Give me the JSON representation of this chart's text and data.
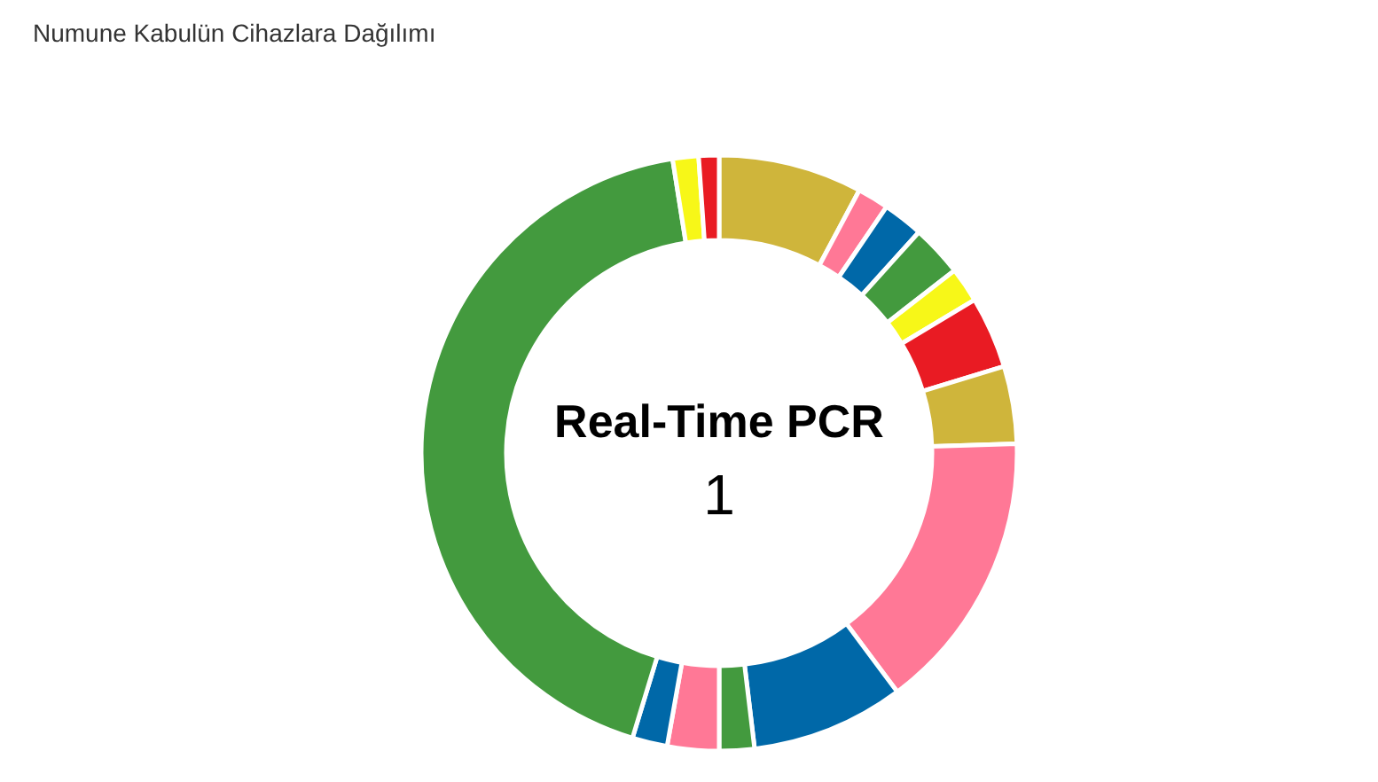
{
  "chart_data": {
    "type": "donut",
    "title": "Numune Kabulün Cihazlara Dağılımı",
    "categories": [
      null,
      null,
      null,
      null,
      null,
      null,
      null,
      null,
      null,
      null,
      null,
      null,
      null,
      null,
      null
    ],
    "values": [
      7.8,
      1.7,
      2.2,
      2.8,
      1.9,
      3.9,
      4.2,
      15.3,
      8.3,
      1.9,
      2.8,
      1.9,
      42.8,
      1.4,
      1.1
    ],
    "colors": [
      "#cfb53b",
      "#ff7896",
      "#0068a8",
      "#439a3e",
      "#f7f718",
      "#e91b23",
      "#cfb53b",
      "#ff7896",
      "#0068a8",
      "#439a3e",
      "#ff7896",
      "#0068a8",
      "#439a3e",
      "#f7f718",
      "#e91b23"
    ],
    "annotations": [
      "Real-Time PCR",
      "1"
    ]
  }
}
